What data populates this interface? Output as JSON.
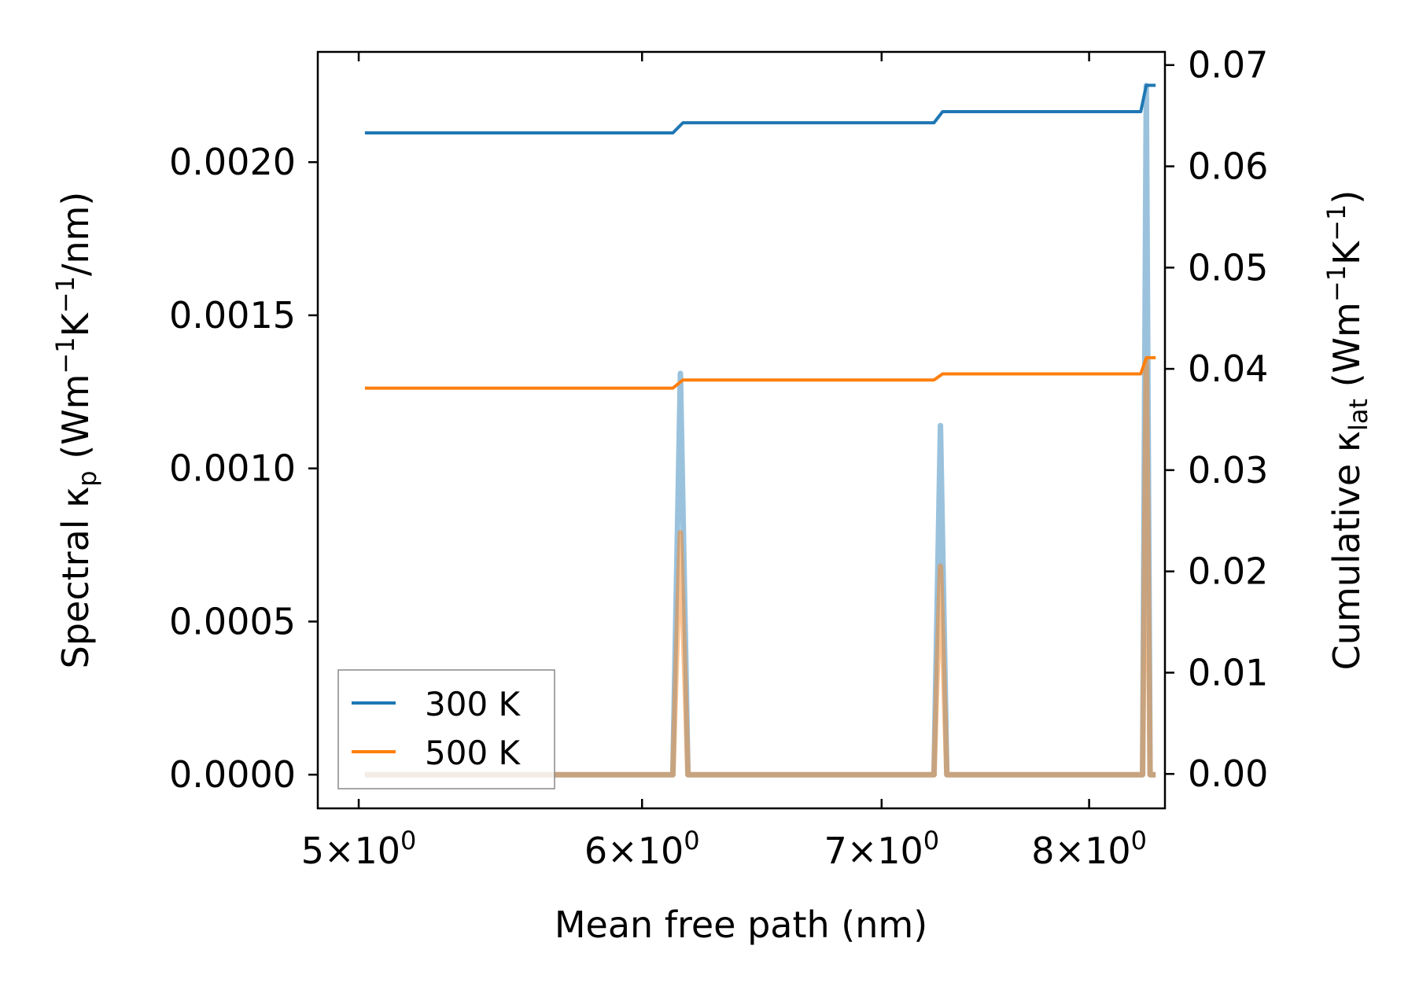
{
  "chart_data": {
    "type": "line",
    "xlabel": "Mean free path (nm)",
    "ylabel_left": "Spectral κ_p (Wm⁻¹K⁻¹/nm)",
    "ylabel_left_parts": {
      "main": "Spectral κ",
      "sub": "p",
      "unit_a": " (Wm",
      "sup1": "−1",
      "unit_b": "K",
      "sup2": "−1",
      "unit_c": "/nm)"
    },
    "ylabel_right": "Cumulative κ_lat (Wm⁻¹K⁻¹)",
    "ylabel_right_parts": {
      "main": "Cumulative κ",
      "sub": "lat",
      "unit_a": " (Wm",
      "sup1": "−1",
      "unit_b": "K",
      "sup2": "−1",
      "unit_c": ")"
    },
    "x_scale": "log",
    "xlim": [
      4.87,
      8.4
    ],
    "ylim_left": [
      -0.00011,
      0.00236
    ],
    "ylim_right": [
      -0.0034,
      0.0713
    ],
    "x_ticks": [
      {
        "value": 5,
        "mantissa": "5",
        "base": "10",
        "exp": "0"
      },
      {
        "value": 6,
        "mantissa": "6",
        "base": "10",
        "exp": "0"
      },
      {
        "value": 7,
        "mantissa": "7",
        "base": "10",
        "exp": "0"
      },
      {
        "value": 8,
        "mantissa": "8",
        "base": "10",
        "exp": "0"
      }
    ],
    "y_ticks_left": [
      {
        "value": 0.0,
        "label": "0.0000"
      },
      {
        "value": 0.0005,
        "label": "0.0005"
      },
      {
        "value": 0.001,
        "label": "0.0010"
      },
      {
        "value": 0.0015,
        "label": "0.0015"
      },
      {
        "value": 0.002,
        "label": "0.0020"
      }
    ],
    "y_ticks_right": [
      {
        "value": 0.0,
        "label": "0.00"
      },
      {
        "value": 0.01,
        "label": "0.01"
      },
      {
        "value": 0.02,
        "label": "0.02"
      },
      {
        "value": 0.03,
        "label": "0.03"
      },
      {
        "value": 0.04,
        "label": "0.04"
      },
      {
        "value": 0.05,
        "label": "0.05"
      },
      {
        "value": 0.06,
        "label": "0.06"
      },
      {
        "value": 0.07,
        "label": "0.07"
      }
    ],
    "legend_position": "lower-left",
    "series": [
      {
        "name": "300 K",
        "color": "#1f77b4",
        "axis": "left",
        "role": "spectral",
        "x": [
          5.02,
          6.12,
          6.15,
          6.18,
          7.24,
          7.27,
          7.3,
          8.28,
          8.3,
          8.32,
          8.35
        ],
        "y": [
          0.0,
          0.0,
          0.00131,
          0.0,
          0.0,
          0.00114,
          0.0,
          0.0,
          0.00225,
          0.0,
          0.0
        ]
      },
      {
        "name": "500 K",
        "color": "#ff7f0e",
        "axis": "left",
        "role": "spectral",
        "x": [
          5.02,
          6.12,
          6.15,
          6.18,
          7.24,
          7.27,
          7.3,
          8.28,
          8.3,
          8.32,
          8.35
        ],
        "y": [
          0.0,
          0.0,
          0.00079,
          0.0,
          0.0,
          0.00068,
          0.0,
          0.0,
          0.00135,
          0.0,
          0.0
        ]
      },
      {
        "name": "300 K",
        "color": "#1f77b4",
        "axis": "right",
        "role": "cumulative",
        "x": [
          5.02,
          6.12,
          6.16,
          7.24,
          7.28,
          8.27,
          8.3,
          8.35
        ],
        "y": [
          0.0633,
          0.0633,
          0.0643,
          0.0643,
          0.0654,
          0.0654,
          0.068,
          0.068
        ]
      },
      {
        "name": "500 K",
        "color": "#ff7f0e",
        "axis": "right",
        "role": "cumulative",
        "x": [
          5.02,
          6.12,
          6.16,
          7.24,
          7.28,
          8.27,
          8.3,
          8.35
        ],
        "y": [
          0.0381,
          0.0381,
          0.0389,
          0.0389,
          0.0395,
          0.0395,
          0.0411,
          0.0411
        ]
      }
    ],
    "legend": [
      {
        "label": "300 K",
        "color": "#1f77b4"
      },
      {
        "label": "500 K",
        "color": "#ff7f0e"
      }
    ]
  }
}
